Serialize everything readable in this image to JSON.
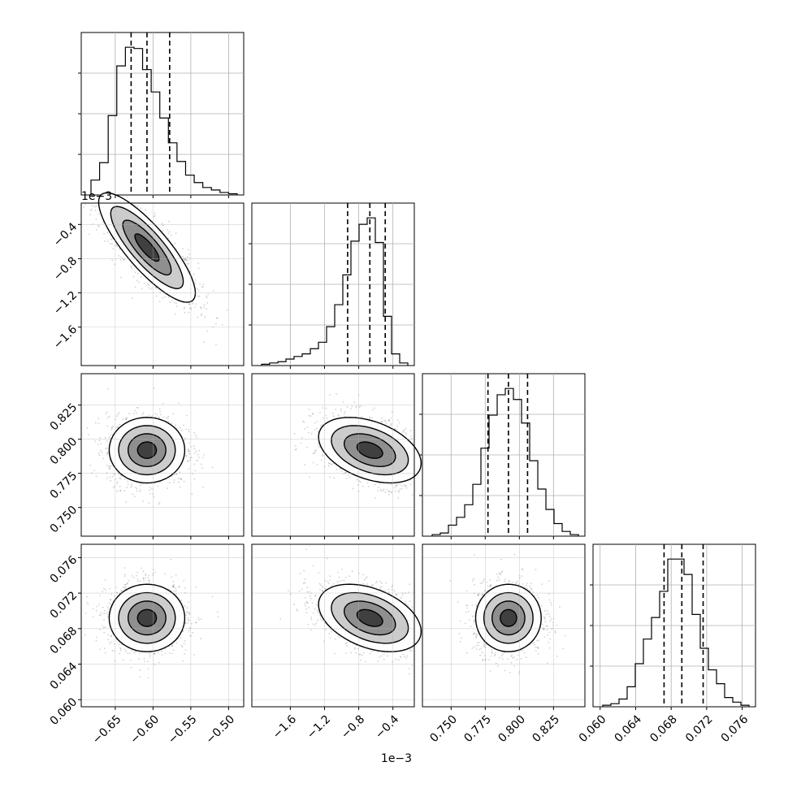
{
  "chart_data": {
    "type": "corner",
    "params": [
      {
        "range": [
          -0.695,
          -0.48
        ],
        "ticks": [
          -0.65,
          -0.6,
          -0.55,
          -0.5
        ],
        "tick_labels": [
          "−0.65",
          "−0.60",
          "−0.55",
          "−0.50"
        ],
        "offset_label": "1e−3",
        "quantiles": [
          -0.629,
          -0.608,
          -0.578
        ],
        "hist": [
          120,
          260,
          640,
          1040,
          1190,
          1180,
          1010,
          830,
          620,
          420,
          270,
          160,
          100,
          60,
          40,
          20,
          10
        ]
      },
      {
        "range": [
          -2.05,
          -0.15
        ],
        "ticks": [
          -1.6,
          -1.2,
          -0.8,
          -0.4
        ],
        "tick_labels": [
          "−1.6",
          "−1.2",
          "−0.8",
          "−0.4"
        ],
        "offset_label": "1e−3",
        "quantiles": [
          -0.93,
          -0.67,
          -0.49
        ],
        "hist": [
          10,
          20,
          30,
          50,
          70,
          90,
          130,
          180,
          300,
          470,
          700,
          960,
          1090,
          1140,
          950,
          380,
          90,
          20
        ]
      },
      {
        "range": [
          0.729,
          0.848
        ],
        "ticks": [
          0.75,
          0.775,
          0.8,
          0.825
        ],
        "tick_labels": [
          "0.750",
          "0.775",
          "0.800",
          "0.825"
        ],
        "offset_label": "",
        "quantiles": [
          0.777,
          0.792,
          0.806
        ],
        "hist": [
          10,
          20,
          70,
          120,
          200,
          330,
          560,
          770,
          900,
          940,
          870,
          720,
          480,
          300,
          170,
          80,
          30,
          10
        ]
      },
      {
        "range": [
          0.0592,
          0.0775
        ],
        "ticks": [
          0.06,
          0.064,
          0.068,
          0.072,
          0.076
        ],
        "tick_labels": [
          "0.060",
          "0.064",
          "0.068",
          "0.072",
          "0.076"
        ],
        "offset_label": "",
        "quantiles": [
          0.0672,
          0.0692,
          0.0716
        ],
        "hist": [
          10,
          20,
          50,
          130,
          280,
          440,
          580,
          750,
          960,
          960,
          860,
          600,
          380,
          240,
          150,
          60,
          30,
          10
        ]
      }
    ],
    "sigma": [
      {
        "pair": [
          0,
          1
        ],
        "sx": 0.032,
        "sy": 0.32,
        "rho": -0.83
      },
      {
        "pair": [
          0,
          2
        ],
        "sx": 0.025,
        "sy": 0.012,
        "rho": 0.0
      },
      {
        "pair": [
          1,
          2
        ],
        "sx": 0.3,
        "sy": 0.012,
        "rho": -0.4
      },
      {
        "pair": [
          0,
          3
        ],
        "sx": 0.025,
        "sy": 0.0019,
        "rho": 0.0
      },
      {
        "pair": [
          1,
          3
        ],
        "sx": 0.3,
        "sy": 0.0019,
        "rho": -0.4
      },
      {
        "pair": [
          2,
          3
        ],
        "sx": 0.012,
        "sy": 0.0019,
        "rho": 0.0
      }
    ],
    "grid": true,
    "contour_levels_sigma": [
      0.5,
      1.0,
      1.5,
      2.0
    ]
  }
}
